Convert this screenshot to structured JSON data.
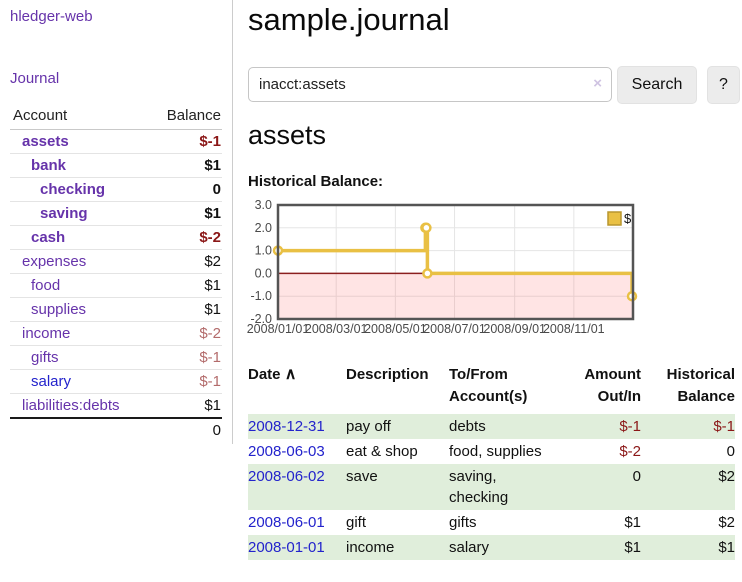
{
  "app": {
    "brand": "hledger-web"
  },
  "sidebar": {
    "nav_journal": "Journal",
    "accounts": {
      "col_account": "Account",
      "col_balance": "Balance",
      "rows": [
        {
          "name": "assets",
          "balance": "$-1",
          "depth": 1,
          "bold": true,
          "neg": true,
          "blue": false
        },
        {
          "name": "bank",
          "balance": "$1",
          "depth": 2,
          "bold": true,
          "neg": false,
          "blue": false
        },
        {
          "name": "checking",
          "balance": "0",
          "depth": 3,
          "bold": true,
          "neg": false,
          "blue": false
        },
        {
          "name": "saving",
          "balance": "$1",
          "depth": 3,
          "bold": true,
          "neg": false,
          "blue": false
        },
        {
          "name": "cash",
          "balance": "$-2",
          "depth": 2,
          "bold": true,
          "neg": true,
          "blue": false
        },
        {
          "name": "expenses",
          "balance": "$2",
          "depth": 1,
          "bold": false,
          "neg": false,
          "blue": false
        },
        {
          "name": "food",
          "balance": "$1",
          "depth": 2,
          "bold": false,
          "neg": false,
          "blue": false
        },
        {
          "name": "supplies",
          "balance": "$1",
          "depth": 2,
          "bold": false,
          "neg": false,
          "blue": false
        },
        {
          "name": "income",
          "balance": "$-2",
          "depth": 1,
          "bold": false,
          "neg": true,
          "blue": false
        },
        {
          "name": "gifts",
          "balance": "$-1",
          "depth": 2,
          "bold": false,
          "neg": true,
          "blue": false
        },
        {
          "name": "salary",
          "balance": "$-1",
          "depth": 2,
          "bold": false,
          "neg": true,
          "blue": true
        },
        {
          "name": "liabilities:debts",
          "balance": "$1",
          "depth": 1,
          "bold": false,
          "neg": false,
          "blue": false
        }
      ],
      "total": "0"
    }
  },
  "main": {
    "title": "sample.journal",
    "search": {
      "value": "inacct:assets",
      "clear": "×",
      "search_button": "Search",
      "help_button": "?"
    },
    "account_heading": "assets",
    "chart_title": "Historical Balance:"
  },
  "chart_data": {
    "type": "line",
    "title": "Historical Balance",
    "step": true,
    "series": [
      {
        "name": "$",
        "points": [
          {
            "date": "2008-01-01",
            "value": 1
          },
          {
            "date": "2008-06-01",
            "value": 2
          },
          {
            "date": "2008-06-02",
            "value": 2
          },
          {
            "date": "2008-06-03",
            "value": 0
          },
          {
            "date": "2008-12-31",
            "value": -1
          }
        ]
      }
    ],
    "x_range": [
      "2008-01-01",
      "2009-01-01"
    ],
    "y_range": [
      -2,
      3
    ],
    "y_ticks": {
      "values": [
        3,
        2,
        1,
        0,
        -1,
        -2
      ],
      "labels": [
        "3.0",
        "2.0",
        "1.0",
        "0.0",
        "-1.0",
        "-2.0"
      ]
    },
    "x_ticks": {
      "dates": [
        "2008-01-01",
        "2008-03-01",
        "2008-05-01",
        "2008-07-01",
        "2008-09-01",
        "2008-11-01"
      ],
      "labels": [
        "2008/01/01",
        "2008/03/01",
        "2008/05/01",
        "2008/07/01",
        "2008/09/01",
        "2008/11/01"
      ]
    },
    "legend": {
      "label": "$",
      "position": "top-right"
    },
    "grid": true,
    "colors": {
      "line": "#e9c044",
      "marker_ring": "#e9c044",
      "marker_fill": "#ffffff",
      "swatch_border": "#b8962e",
      "negative_region": "rgba(255,90,90,0.16)",
      "zero_line": "#8b1f1f",
      "grid": "#e5e5e5",
      "border": "#545454"
    }
  },
  "register": {
    "headers": {
      "date": "Date",
      "sort_arrow": "∧",
      "description": "Description",
      "tofrom_l1": "To/From",
      "tofrom_l2": "Account(s)",
      "amount_l1": "Amount",
      "amount_l2": "Out/In",
      "balance_l1": "Historical",
      "balance_l2": "Balance"
    },
    "rows": [
      {
        "date": "2008-12-31",
        "description": "pay off",
        "accounts": "debts",
        "amount": "$-1",
        "balance": "$-1",
        "amount_neg": true,
        "balance_neg": true
      },
      {
        "date": "2008-06-03",
        "description": "eat & shop",
        "accounts": "food, supplies",
        "amount": "$-2",
        "balance": "0",
        "amount_neg": true,
        "balance_neg": false
      },
      {
        "date": "2008-06-02",
        "description": "save",
        "accounts": "saving, checking",
        "amount": "0",
        "balance": "$2",
        "amount_neg": false,
        "balance_neg": false
      },
      {
        "date": "2008-06-01",
        "description": "gift",
        "accounts": "gifts",
        "amount": "$1",
        "balance": "$2",
        "amount_neg": false,
        "balance_neg": false
      },
      {
        "date": "2008-01-01",
        "description": "income",
        "accounts": "salary",
        "amount": "$1",
        "balance": "$1",
        "amount_neg": false,
        "balance_neg": false
      }
    ]
  }
}
